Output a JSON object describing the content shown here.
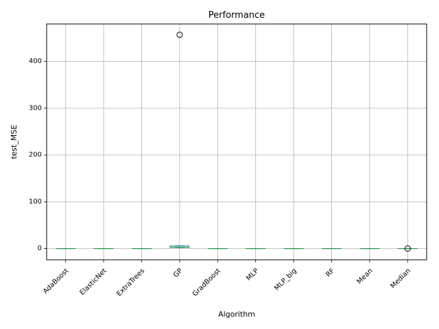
{
  "chart_data": {
    "type": "box",
    "title": "Performance",
    "xlabel": "Algorithm",
    "ylabel": "test_MSE",
    "ylim": [
      -24,
      480
    ],
    "yticks": [
      0,
      100,
      200,
      300,
      400
    ],
    "grid": true,
    "categories": [
      "AdaBoost",
      "ElasticNet",
      "ExtraTrees",
      "GP",
      "GradBoost",
      "MLP",
      "MLP_big",
      "RF",
      "Mean",
      "Median"
    ],
    "boxes": [
      {
        "category": "AdaBoost",
        "whislo": 0.0,
        "q1": 0.0,
        "median": 0.0,
        "q3": 0.0,
        "whishi": 0.0,
        "fliers": []
      },
      {
        "category": "ElasticNet",
        "whislo": 0.0,
        "q1": 0.0,
        "median": 0.0,
        "q3": 0.0,
        "whishi": 0.0,
        "fliers": []
      },
      {
        "category": "ExtraTrees",
        "whislo": 0.0,
        "q1": 0.0,
        "median": 0.0,
        "q3": 0.0,
        "whishi": 0.0,
        "fliers": []
      },
      {
        "category": "GP",
        "whislo": 2.0,
        "q1": 2.5,
        "median": 3.0,
        "q3": 5.5,
        "whishi": 6.0,
        "fliers": [
          457
        ]
      },
      {
        "category": "GradBoost",
        "whislo": 0.0,
        "q1": 0.0,
        "median": 0.0,
        "q3": 0.0,
        "whishi": 0.0,
        "fliers": []
      },
      {
        "category": "MLP",
        "whislo": 0.0,
        "q1": 0.0,
        "median": 0.0,
        "q3": 0.0,
        "whishi": 0.0,
        "fliers": []
      },
      {
        "category": "MLP_big",
        "whislo": 0.0,
        "q1": 0.0,
        "median": 0.0,
        "q3": 0.0,
        "whishi": 0.0,
        "fliers": []
      },
      {
        "category": "RF",
        "whislo": 0.0,
        "q1": 0.0,
        "median": 0.0,
        "q3": 0.0,
        "whishi": 0.0,
        "fliers": []
      },
      {
        "category": "Mean",
        "whislo": 0.0,
        "q1": 0.0,
        "median": 0.0,
        "q3": 0.0,
        "whishi": 0.0,
        "fliers": []
      },
      {
        "category": "Median",
        "whislo": 0.0,
        "q1": 0.0,
        "median": 0.0,
        "q3": 0.0,
        "whishi": 0.0,
        "fliers": [
          0.0
        ]
      }
    ],
    "colors": {
      "box": "#1f77b4",
      "median": "#2ca02c",
      "whisker": "#1f77b4",
      "grid": "#b0b0b0",
      "flier_edge": "#000000"
    }
  }
}
